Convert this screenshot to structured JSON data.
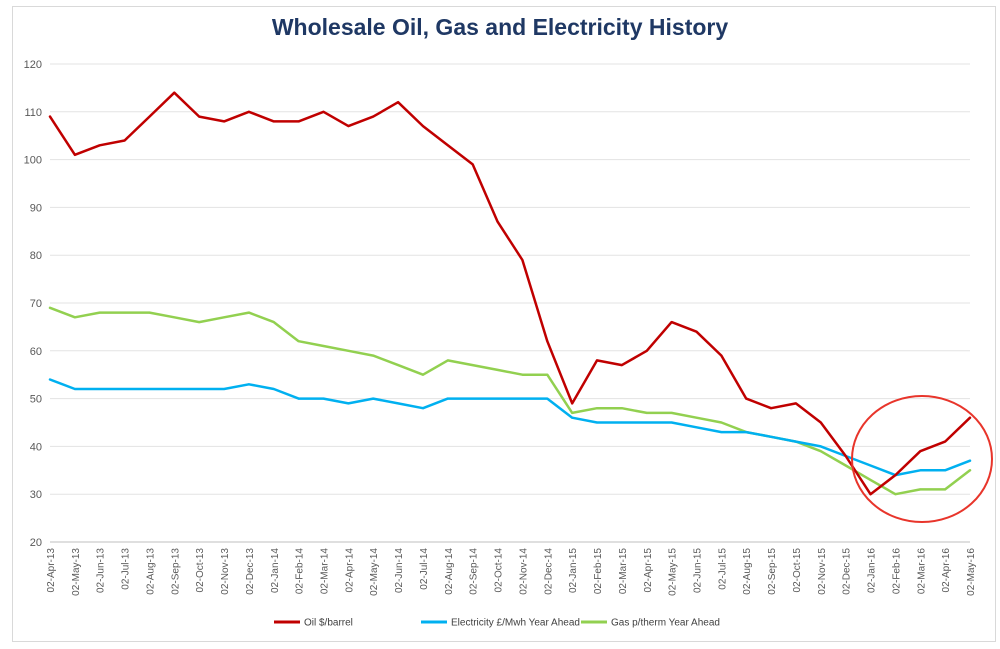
{
  "chart_data": {
    "type": "line",
    "title": "Wholesale Oil, Gas and Electricity History",
    "xlabel": "",
    "ylabel": "",
    "ylim": [
      20,
      120
    ],
    "yticks": [
      20,
      30,
      40,
      50,
      60,
      70,
      80,
      90,
      100,
      110,
      120
    ],
    "grid": true,
    "legend_position": "bottom",
    "x": [
      "02-Apr-13",
      "02-May-13",
      "02-Jun-13",
      "02-Jul-13",
      "02-Aug-13",
      "02-Sep-13",
      "02-Oct-13",
      "02-Nov-13",
      "02-Dec-13",
      "02-Jan-14",
      "02-Feb-14",
      "02-Mar-14",
      "02-Apr-14",
      "02-May-14",
      "02-Jun-14",
      "02-Jul-14",
      "02-Aug-14",
      "02-Sep-14",
      "02-Oct-14",
      "02-Nov-14",
      "02-Dec-14",
      "02-Jan-15",
      "02-Feb-15",
      "02-Mar-15",
      "02-Apr-15",
      "02-May-15",
      "02-Jun-15",
      "02-Jul-15",
      "02-Aug-15",
      "02-Sep-15",
      "02-Oct-15",
      "02-Nov-15",
      "02-Dec-15",
      "02-Jan-16",
      "02-Feb-16",
      "02-Mar-16",
      "02-Apr-16",
      "02-May-16"
    ],
    "series": [
      {
        "name": "Oil $/barrel",
        "color": "#c00000",
        "values": [
          109,
          101,
          103,
          104,
          109,
          114,
          109,
          108,
          110,
          108,
          108,
          110,
          107,
          109,
          112,
          107,
          103,
          99,
          87,
          79,
          62,
          49,
          58,
          57,
          60,
          66,
          64,
          59,
          50,
          48,
          49,
          45,
          38,
          30,
          34,
          39,
          41,
          46
        ]
      },
      {
        "name": "Electricity £/Mwh Year Ahead",
        "color": "#00b0f0",
        "values": [
          54,
          52,
          52,
          52,
          52,
          52,
          52,
          52,
          53,
          52,
          50,
          50,
          49,
          50,
          49,
          48,
          50,
          50,
          50,
          50,
          50,
          46,
          45,
          45,
          45,
          45,
          44,
          43,
          43,
          42,
          41,
          40,
          38,
          36,
          34,
          35,
          35,
          37
        ]
      },
      {
        "name": "Gas p/therm Year Ahead",
        "color": "#92d050",
        "values": [
          69,
          67,
          68,
          68,
          68,
          67,
          66,
          67,
          68,
          66,
          62,
          61,
          60,
          59,
          57,
          55,
          58,
          57,
          56,
          55,
          55,
          47,
          48,
          48,
          47,
          47,
          46,
          45,
          43,
          42,
          41,
          39,
          36,
          33,
          30,
          31,
          31,
          35
        ]
      }
    ]
  }
}
